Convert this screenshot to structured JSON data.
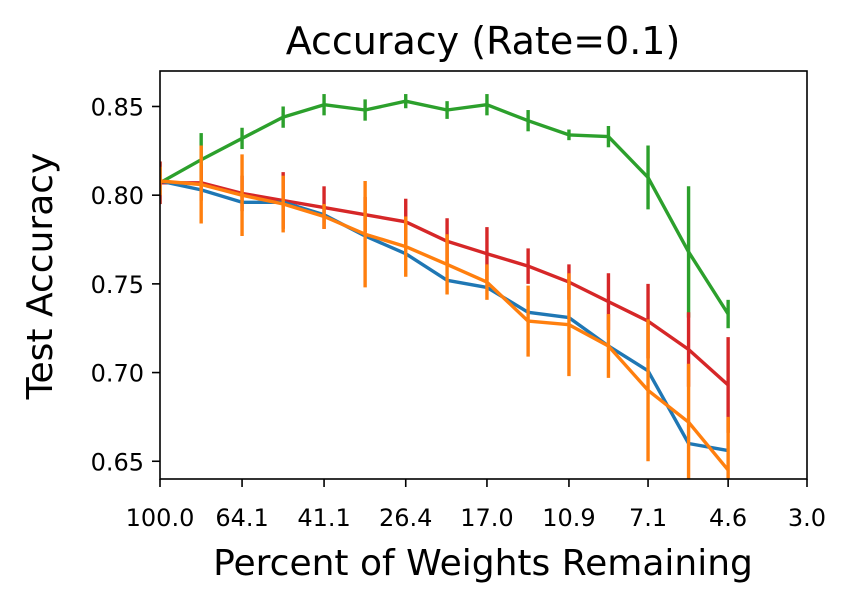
{
  "chart_data": {
    "type": "line",
    "title": "Accuracy (Rate=0.1)",
    "xlabel": "Percent of Weights Remaining",
    "ylabel": "Test Accuracy",
    "x_scale": "log",
    "x_ticks": [
      100.0,
      64.1,
      41.1,
      26.4,
      17.0,
      10.9,
      7.1,
      4.6,
      3.0
    ],
    "x_tick_labels": [
      "100.0",
      "64.1",
      "41.1",
      "26.4",
      "17.0",
      "10.9",
      "7.1",
      "4.6",
      "3.0"
    ],
    "y_ticks": [
      0.65,
      0.7,
      0.75,
      0.8,
      0.85
    ],
    "y_tick_labels": [
      "0.65",
      "0.70",
      "0.75",
      "0.80",
      "0.85"
    ],
    "xlim": [
      100.0,
      3.0
    ],
    "ylim": [
      0.64,
      0.87
    ],
    "grid": false,
    "legend": "none",
    "x": [
      100.0,
      80.0,
      64.1,
      51.3,
      41.1,
      32.9,
      26.4,
      21.1,
      17.0,
      13.6,
      10.9,
      8.8,
      7.1,
      5.7,
      4.6
    ],
    "series": [
      {
        "color": "#2ca02c",
        "values": [
          0.807,
          0.82,
          0.832,
          0.844,
          0.851,
          0.848,
          0.853,
          0.848,
          0.851,
          0.842,
          0.834,
          0.833,
          0.81,
          0.768,
          0.733
        ],
        "errors": [
          0.012,
          0.015,
          0.006,
          0.006,
          0.006,
          0.006,
          0.004,
          0.005,
          0.006,
          0.006,
          0.003,
          0.006,
          0.018,
          0.037,
          0.008
        ]
      },
      {
        "color": "#d62728",
        "values": [
          0.807,
          0.807,
          0.801,
          0.797,
          0.793,
          0.789,
          0.785,
          0.774,
          0.767,
          0.76,
          0.751,
          0.74,
          0.729,
          0.713,
          0.693
        ],
        "errors": [
          0.012,
          0.01,
          0.01,
          0.016,
          0.012,
          0.01,
          0.013,
          0.013,
          0.015,
          0.01,
          0.01,
          0.016,
          0.021,
          0.021,
          0.027
        ]
      },
      {
        "color": "#1f77b4",
        "values": [
          0.808,
          0.803,
          0.796,
          0.796,
          0.789,
          0.777,
          0.767,
          0.752,
          0.748,
          0.734,
          0.731,
          0.715,
          0.701,
          0.66,
          0.656
        ]
      },
      {
        "color": "#ff7f0e",
        "values": [
          0.808,
          0.806,
          0.8,
          0.795,
          0.788,
          0.778,
          0.771,
          0.761,
          0.751,
          0.729,
          0.727,
          0.715,
          0.69,
          0.672,
          0.645
        ],
        "errors": [
          0.008,
          0.022,
          0.023,
          0.016,
          0.007,
          0.03,
          0.017,
          0.017,
          0.01,
          0.02,
          0.029,
          0.018,
          0.04,
          0.033,
          0.03
        ]
      }
    ]
  }
}
